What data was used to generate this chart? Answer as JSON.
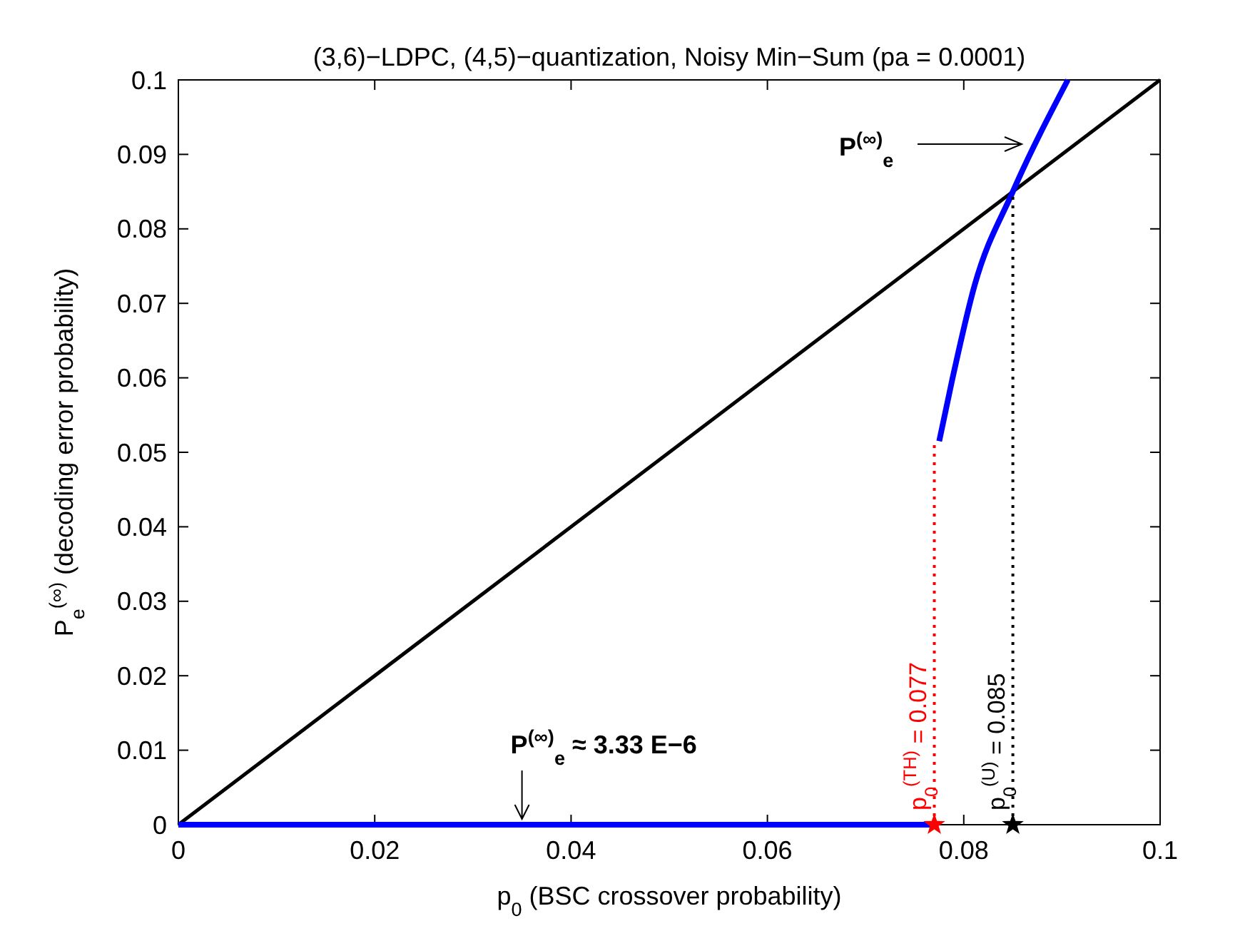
{
  "chart_data": {
    "type": "line",
    "title": "(3,6)−LDPC, (4,5)−quantization, Noisy Min−Sum (pa = 0.0001)",
    "xlabel": "p$_{0}$ (BSC crossover probability)",
    "ylabel": "P$_{e}$$^{(∞)}$ (decoding error probability)",
    "xlim": [
      0,
      0.1
    ],
    "ylim": [
      0,
      0.1
    ],
    "xticks": [
      0,
      0.02,
      0.04,
      0.06,
      0.08,
      0.1
    ],
    "yticks": [
      0,
      0.01,
      0.02,
      0.03,
      0.04,
      0.05,
      0.06,
      0.07,
      0.08,
      0.09,
      0.1
    ],
    "grid": false,
    "series": [
      {
        "color": "#000000",
        "line_style": "solid",
        "x": [
          0,
          0.1
        ],
        "values": [
          0,
          0.1
        ]
      },
      {
        "color": "#0000ff",
        "line_style": "solid",
        "x": [
          0,
          0.077
        ],
        "values": [
          0,
          0
        ]
      },
      {
        "color": "#0000ff",
        "line_style": "solid",
        "x": [
          0.0775,
          0.0788,
          0.0811,
          0.085,
          0.0906
        ],
        "values": [
          0.0515,
          0.0596,
          0.0724,
          0.085,
          0.1
        ]
      },
      {
        "name": "p$_{0}$$^{(TH)}$ = 0.077",
        "color": "#ff0000",
        "line_style": "dotted",
        "x": [
          0.077,
          0.077
        ],
        "values": [
          0,
          0.0515
        ]
      },
      {
        "name": "p$_{0}$$^{(U)}$ = 0.085",
        "color": "#000000",
        "line_style": "dotted",
        "x": [
          0.085,
          0.085
        ],
        "values": [
          0,
          0.085
        ]
      },
      {
        "type": "scatter",
        "marker": "star",
        "colors": [
          "#ff0000",
          "#000000"
        ],
        "x": [
          0.077,
          0.085
        ],
        "values": [
          0,
          0
        ]
      }
    ],
    "annotations": [
      {
        "text": "P$^{(∞)}$$_{e}$ ≈ 3.33 E−6",
        "x": 0.035,
        "y": 0
      },
      "P$^{(∞)}$$_{e}$"
    ]
  }
}
